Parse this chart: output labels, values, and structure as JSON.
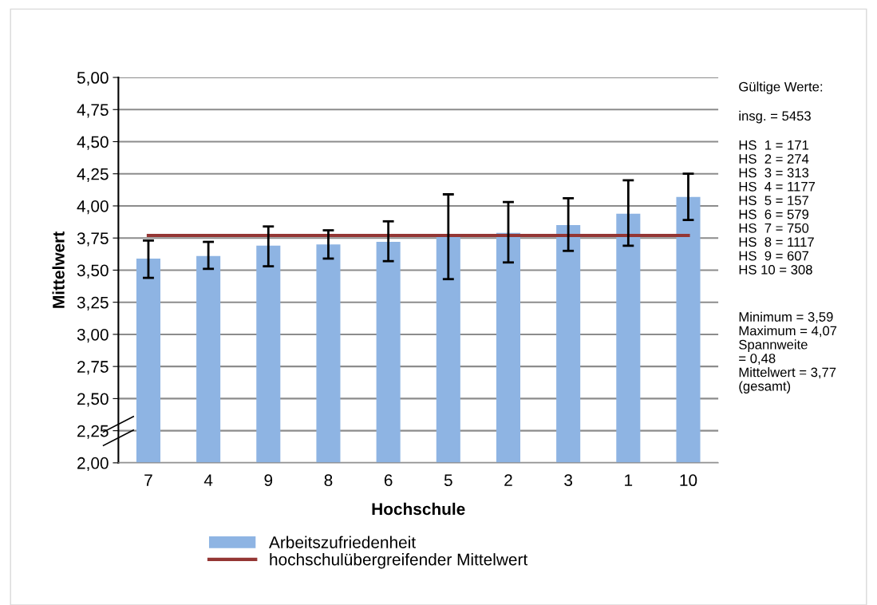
{
  "chart_data": {
    "type": "bar",
    "xlabel": "Hochschule",
    "ylabel": "Mittelwert",
    "categories": [
      "7",
      "4",
      "9",
      "8",
      "6",
      "5",
      "2",
      "3",
      "1",
      "10"
    ],
    "series": [
      {
        "name": "Arbeitszufriedenheit",
        "color": "#8eb4e3",
        "values": [
          3.59,
          3.61,
          3.69,
          3.7,
          3.72,
          3.76,
          3.79,
          3.85,
          3.94,
          4.07
        ],
        "errors": [
          [
            3.44,
            3.73
          ],
          [
            3.51,
            3.72
          ],
          [
            3.53,
            3.84
          ],
          [
            3.59,
            3.81
          ],
          [
            3.57,
            3.88
          ],
          [
            3.43,
            4.09
          ],
          [
            3.56,
            4.03
          ],
          [
            3.65,
            4.06
          ],
          [
            3.69,
            4.2
          ],
          [
            3.89,
            4.25
          ]
        ]
      }
    ],
    "ref_lines": [
      {
        "axis": "y",
        "value": 3.77,
        "label": "hochschulübergreifender Mittelwert",
        "color": "#943634"
      }
    ],
    "ylim": [
      2.0,
      5.0
    ],
    "yticks": [
      {
        "value": 2.0,
        "label": "2,00"
      },
      {
        "value": 2.25,
        "label": "2,25"
      },
      {
        "value": 2.5,
        "label": "2,50"
      },
      {
        "value": 2.75,
        "label": "2,75"
      },
      {
        "value": 3.0,
        "label": "3,00"
      },
      {
        "value": 3.25,
        "label": "3,25"
      },
      {
        "value": 3.5,
        "label": "3,50"
      },
      {
        "value": 3.75,
        "label": "3,75"
      },
      {
        "value": 4.0,
        "label": "4,00"
      },
      {
        "value": 4.25,
        "label": "4,25"
      },
      {
        "value": 4.5,
        "label": "4,50"
      },
      {
        "value": 4.75,
        "label": "4,75"
      },
      {
        "value": 5.0,
        "label": "5,00"
      }
    ],
    "grid": "y",
    "legend": "bottom",
    "annotations": [
      "Gültige Werte:",
      "insg. = 5453",
      "HS  1 = 171\nHS  2 = 274\nHS  3 = 313\nHS  4 = 1177\nHS  5 = 157\nHS  6 = 579\nHS  7 = 750\nHS  8 = 1117\nHS  9 = 607\nHS 10 = 308",
      "Minimum = 3,59\nMaximum = 4,07\nSpannweite\n= 0,48\nMittelwert = 3,77\n(gesamt)"
    ]
  }
}
